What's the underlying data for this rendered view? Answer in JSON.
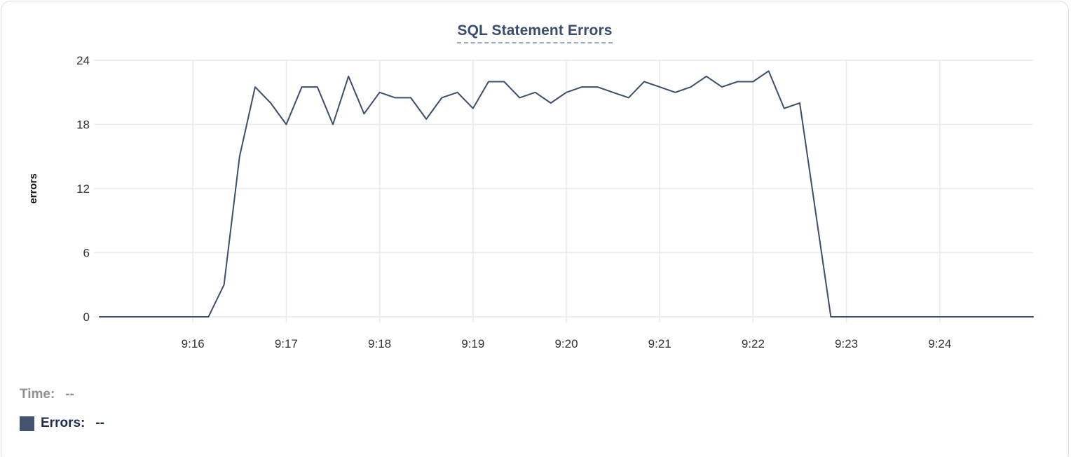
{
  "card": {
    "background": "#ffffff",
    "border_color": "#d9dce1"
  },
  "title": {
    "text": "SQL Statement Errors",
    "color": "#3b4d6e",
    "underline_color": "#9aa7c0"
  },
  "tooltip_legend": {
    "time_label": "Time:",
    "time_value": "--",
    "errors_label": "Errors:",
    "errors_value": "--",
    "time_color": "#8e9093",
    "errors_color": "#1e2b4f",
    "swatch_color": "#44546f"
  },
  "chart_data": {
    "type": "line",
    "title": "SQL Statement Errors",
    "xlabel": "",
    "ylabel": "errors",
    "x_start": "9:15:00",
    "x_end": "9:25:00",
    "interval_seconds": 10,
    "x_tick_labels": [
      "9:16",
      "9:17",
      "9:18",
      "9:19",
      "9:20",
      "9:21",
      "9:22",
      "9:23",
      "9:24"
    ],
    "x_tick_minute_offsets": [
      1,
      2,
      3,
      4,
      5,
      6,
      7,
      8,
      9
    ],
    "y_ticks": [
      0,
      6,
      12,
      18,
      24
    ],
    "ylim": [
      0,
      24
    ],
    "grid": true,
    "legend_position": "bottom-left",
    "line_color": "#3d4e6c",
    "grid_color": "#e9eaec",
    "tick_text_color": "#333333",
    "axis_label_color": "#111111",
    "series": [
      {
        "name": "Errors",
        "values": [
          0,
          0,
          0,
          0,
          0,
          0,
          0,
          0,
          3,
          15,
          21.5,
          20,
          18,
          21.5,
          21.5,
          18,
          22.5,
          19,
          21,
          20.5,
          20.5,
          18.5,
          20.5,
          21,
          19.5,
          22,
          22,
          20.5,
          21,
          20,
          21,
          21.5,
          21.5,
          21,
          20.5,
          22,
          21.5,
          21,
          21.5,
          22.5,
          21.5,
          22,
          22,
          23,
          19.5,
          20,
          10,
          0,
          0,
          0,
          0,
          0,
          0,
          0,
          0,
          0,
          0,
          0,
          0,
          0,
          0
        ]
      }
    ]
  }
}
